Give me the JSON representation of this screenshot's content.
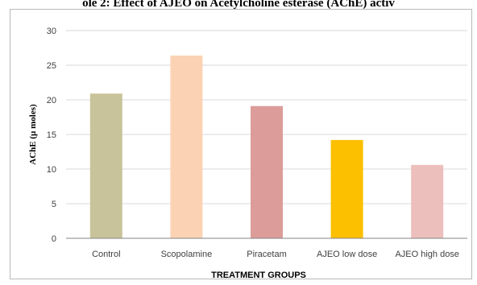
{
  "caption": "ole 2: Effect of AJEO on Acetylcholine esterase (AChE) activ",
  "chart_data": {
    "type": "bar",
    "categories": [
      "Control",
      "Scopolamine",
      "Piracetam",
      "AJEO low dose",
      "AJEO high dose"
    ],
    "values": [
      20.9,
      26.4,
      19.1,
      14.2,
      10.6
    ],
    "colors": [
      "#c8c39a",
      "#fbd3b4",
      "#dc9c9a",
      "#fcc000",
      "#ecbfbc"
    ],
    "xlabel": "TREATMENT GROUPS",
    "ylabel": "AChE (µ moles)",
    "ylim": [
      0,
      30
    ],
    "yticks": [
      0,
      5,
      10,
      15,
      20,
      25,
      30
    ],
    "grid": true,
    "legend": "none"
  }
}
